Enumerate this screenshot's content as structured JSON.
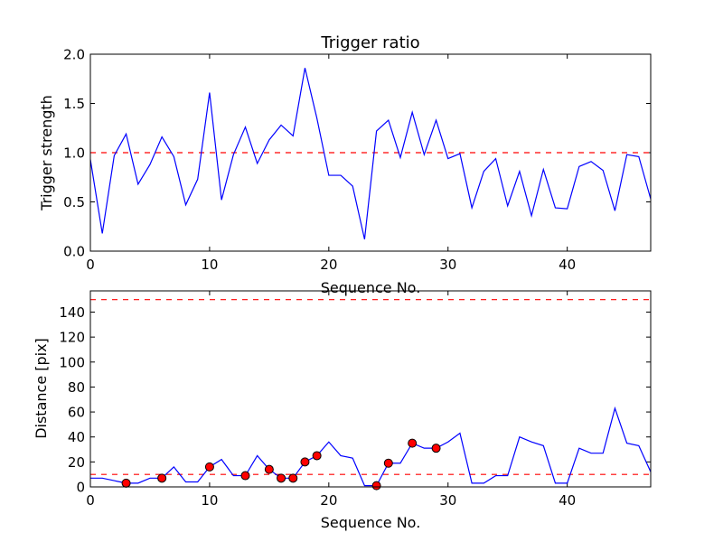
{
  "chart_data": [
    {
      "type": "line",
      "title": "Trigger ratio",
      "xlabel": "Sequence No.",
      "ylabel": "Trigger strength",
      "xlim": [
        0,
        47
      ],
      "ylim": [
        0,
        2.0
      ],
      "xticks": [
        0,
        10,
        20,
        30,
        40
      ],
      "yticks": [
        0.0,
        0.5,
        1.0,
        1.5,
        2.0
      ],
      "ytick_labels": [
        "0.0",
        "0.5",
        "1.0",
        "1.5",
        "2.0"
      ],
      "grid": false,
      "series": [
        {
          "name": "trigger strength",
          "color": "#0000ff",
          "x": [
            0,
            1,
            2,
            3,
            4,
            5,
            6,
            7,
            8,
            9,
            10,
            11,
            12,
            13,
            14,
            15,
            16,
            17,
            18,
            19,
            20,
            21,
            22,
            23,
            24,
            25,
            26,
            27,
            28,
            29,
            30,
            31,
            32,
            33,
            34,
            35,
            36,
            37,
            38,
            39,
            40,
            41,
            42,
            43,
            44,
            45,
            46,
            47
          ],
          "y": [
            0.93,
            0.18,
            0.97,
            1.19,
            0.68,
            0.88,
            1.16,
            0.96,
            0.47,
            0.73,
            1.61,
            0.52,
            0.98,
            1.26,
            0.89,
            1.13,
            1.28,
            1.17,
            1.86,
            1.35,
            0.77,
            0.77,
            0.66,
            0.12,
            1.22,
            1.33,
            0.95,
            1.41,
            0.98,
            1.33,
            0.94,
            0.99,
            0.44,
            0.81,
            0.94,
            0.46,
            0.81,
            0.36,
            0.83,
            0.44,
            0.43,
            0.86,
            0.91,
            0.82,
            0.41,
            0.98,
            0.96,
            0.53
          ]
        }
      ],
      "threshold": {
        "value": 1.0,
        "color": "#ff0000",
        "style": "dashed"
      }
    },
    {
      "type": "line",
      "title": "",
      "xlabel": "Sequence No.",
      "ylabel": "Distance [pix]",
      "xlim": [
        0,
        47
      ],
      "ylim": [
        0,
        157
      ],
      "xticks": [
        0,
        10,
        20,
        30,
        40
      ],
      "yticks": [
        0,
        20,
        40,
        60,
        80,
        100,
        120,
        140
      ],
      "grid": false,
      "series": [
        {
          "name": "distance",
          "color": "#0000ff",
          "x": [
            0,
            1,
            2,
            3,
            4,
            5,
            6,
            7,
            8,
            9,
            10,
            11,
            12,
            13,
            14,
            15,
            16,
            17,
            18,
            19,
            20,
            21,
            22,
            23,
            24,
            25,
            26,
            27,
            28,
            29,
            30,
            31,
            32,
            33,
            34,
            35,
            36,
            37,
            38,
            39,
            40,
            41,
            42,
            43,
            44,
            45,
            46,
            47
          ],
          "y": [
            7,
            7,
            5,
            3,
            3,
            7,
            7,
            16,
            4,
            4,
            16,
            22,
            9,
            9,
            25,
            14,
            7,
            7,
            20,
            25,
            36,
            25,
            23,
            1,
            1,
            19,
            19,
            35,
            31,
            31,
            36,
            43,
            3,
            3,
            9,
            9,
            40,
            36,
            33,
            3,
            3,
            31,
            27,
            27,
            63,
            35,
            33,
            12
          ]
        },
        {
          "name": "triggered",
          "color": "#ff0000",
          "marker": "circle",
          "x": [
            3,
            6,
            10,
            13,
            15,
            16,
            17,
            18,
            19,
            24,
            25,
            27,
            29
          ],
          "y": [
            3,
            7,
            16,
            9,
            14,
            7,
            7,
            20,
            25,
            1,
            19,
            35,
            31
          ]
        }
      ],
      "thresholds": [
        {
          "value": 10,
          "color": "#ff0000",
          "style": "dashed"
        },
        {
          "value": 150,
          "color": "#ff0000",
          "style": "dashed"
        }
      ]
    }
  ]
}
